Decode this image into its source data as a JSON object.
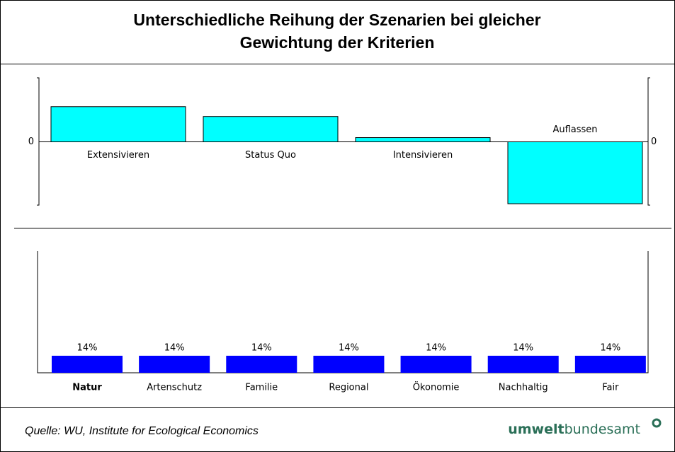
{
  "header": {
    "title": [
      "Unterschiedliche Reihung der Szenarien bei gleicher",
      "Gewichtung der Kriterien"
    ]
  },
  "chart_data": [
    {
      "type": "bar",
      "categories": [
        "Extensivieren",
        "Status Quo",
        "Intensivieren",
        "Auflassen"
      ],
      "values": [
        50,
        36,
        6,
        -88
      ],
      "color": "#00ffff",
      "ylim": [
        -90,
        91
      ],
      "yticks": [
        0
      ]
    },
    {
      "type": "bar",
      "categories": [
        "Natur",
        "Artenschutz",
        "Familie",
        "Regional",
        "Ökonomie",
        "Nachhaltig",
        "Fair"
      ],
      "values": [
        14,
        14,
        14,
        14,
        14,
        14,
        14
      ],
      "value_labels": [
        "14%",
        "14%",
        "14%",
        "14%",
        "14%",
        "14%",
        "14%"
      ],
      "color": "#0000ff",
      "ylim": [
        0,
        100
      ],
      "bold_category": 0
    }
  ],
  "footer": {
    "source": "Quelle: WU, Institute for Ecological Economics",
    "logo_bold": "umwelt",
    "logo_rest": "bundesamt"
  }
}
